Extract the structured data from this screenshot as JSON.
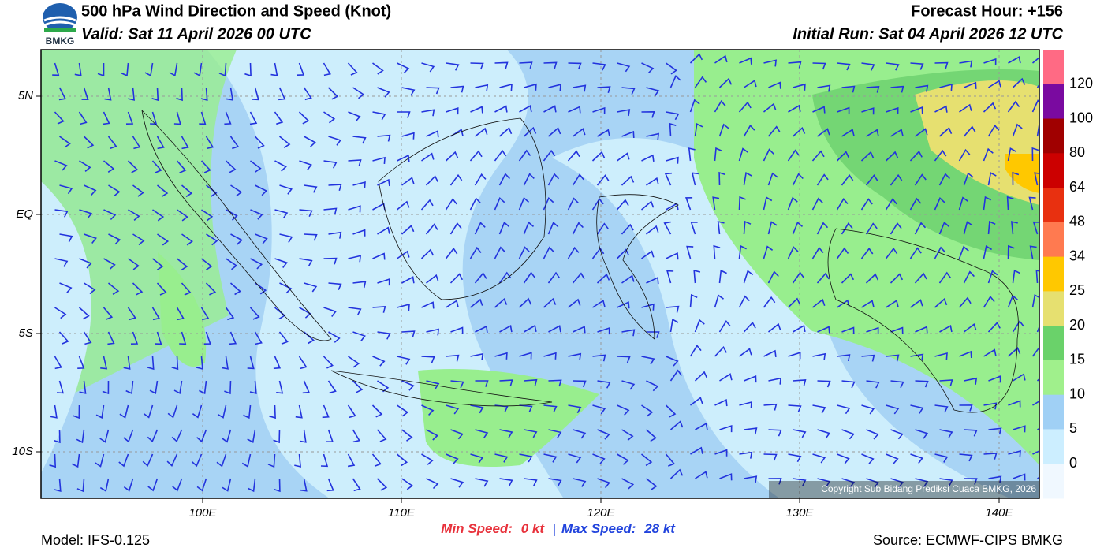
{
  "header": {
    "logo_text": "BMKG",
    "title": "500 hPa Wind Direction and Speed (Knot)",
    "valid": "Valid: Sat 11 April 2026 00 UTC",
    "forecast_hour": "Forecast Hour: +156",
    "initial_run": "Initial Run: Sat 04 April 2026 12 UTC"
  },
  "map": {
    "lon_labels": [
      "100E",
      "110E",
      "120E",
      "130E",
      "140E"
    ],
    "lat_labels": [
      "5N",
      "EQ",
      "5S",
      "10S"
    ],
    "copyright": "Copyright Sub Bidang Prediksi Cuaca BMKG, 2026"
  },
  "colorbar": {
    "ticks": [
      120,
      100,
      80,
      64,
      48,
      34,
      25,
      20,
      15,
      10,
      5,
      0
    ]
  },
  "footer": {
    "min_label": "Min Speed:",
    "min_value": "0 kt",
    "separator": "|",
    "max_label": "Max Speed:",
    "max_value": "28 kt",
    "model": "Model: IFS-0.125",
    "source": "Source: ECMWF-CIPS BMKG"
  }
}
